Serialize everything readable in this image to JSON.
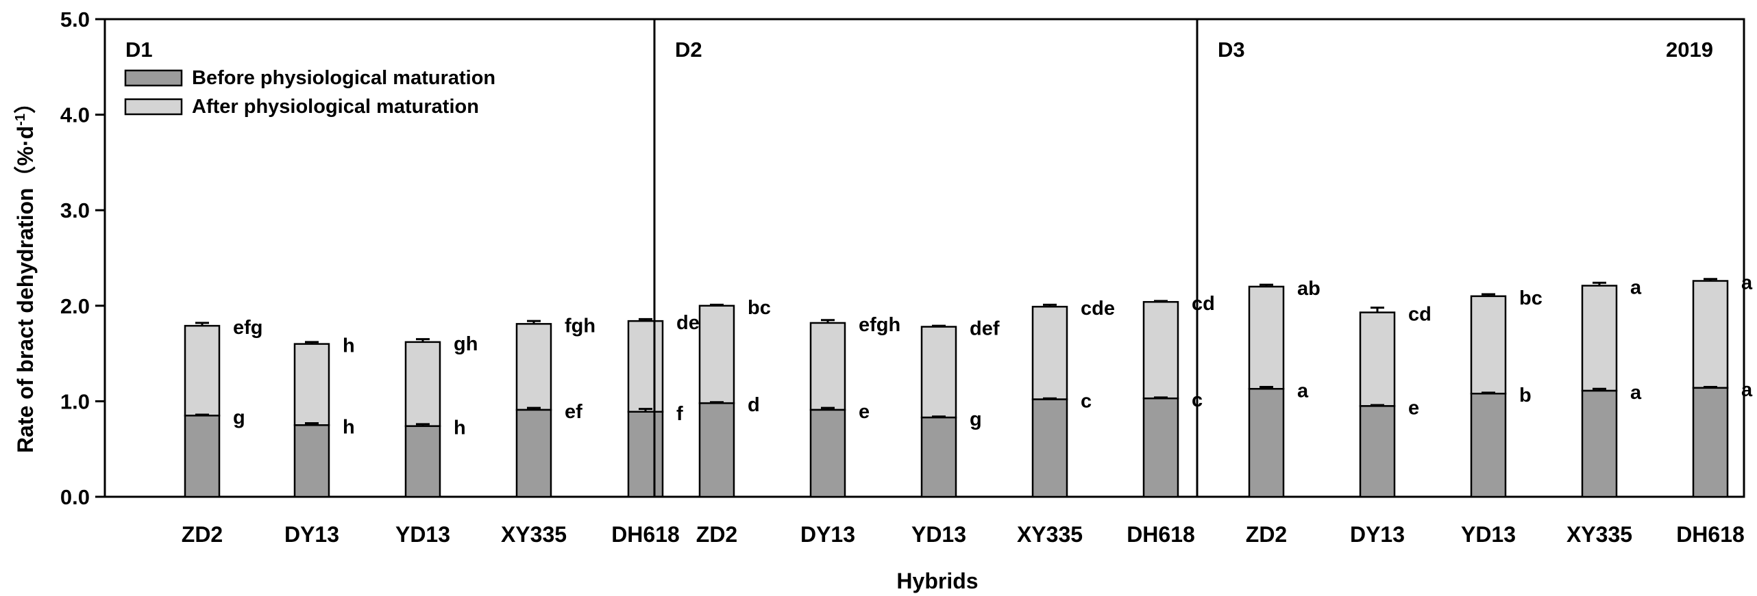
{
  "chart_data": {
    "type": "bar",
    "stacked": true,
    "ylabel": "Rate of bract dehydration（%·d",
    "ylabel_sup": "-1",
    "ylabel_close": "）",
    "xlabel": "Hybrids",
    "year_label": "2019",
    "ylim": [
      0,
      5
    ],
    "yticks": [
      "0.0",
      "1.0",
      "2.0",
      "3.0",
      "4.0",
      "5.0"
    ],
    "ytick_values": [
      0,
      1,
      2,
      3,
      4,
      5
    ],
    "legend": [
      {
        "name": "Before physiological maturation",
        "color": "#9c9c9c"
      },
      {
        "name": "After physiological maturation",
        "color": "#d4d4d4"
      }
    ],
    "categories": [
      "ZD2",
      "DY13",
      "YD13",
      "XY335",
      "DH618"
    ],
    "panels": [
      {
        "label": "D1",
        "before": [
          0.85,
          0.75,
          0.74,
          0.91,
          0.89
        ],
        "before_err": [
          0.01,
          0.02,
          0.02,
          0.02,
          0.03
        ],
        "total": [
          1.79,
          1.6,
          1.62,
          1.81,
          1.84
        ],
        "total_err": [
          0.03,
          0.02,
          0.03,
          0.03,
          0.02
        ],
        "before_sig": [
          "g",
          "h",
          "h",
          "ef",
          "f"
        ],
        "total_sig": [
          "efg",
          "h",
          "gh",
          "fgh",
          "def"
        ]
      },
      {
        "label": "D2",
        "before": [
          0.98,
          0.91,
          0.83,
          1.02,
          1.03
        ],
        "before_err": [
          0.01,
          0.02,
          0.01,
          0.01,
          0.01
        ],
        "total": [
          2.0,
          1.82,
          1.78,
          1.99,
          2.04
        ],
        "total_err": [
          0.01,
          0.03,
          0.01,
          0.02,
          0.01
        ],
        "before_sig": [
          "d",
          "e",
          "g",
          "c",
          "c"
        ],
        "total_sig": [
          "bc",
          "efgh",
          "def",
          "cde",
          "cd"
        ]
      },
      {
        "label": "D3",
        "before": [
          1.13,
          0.95,
          1.08,
          1.11,
          1.14
        ],
        "before_err": [
          0.02,
          0.01,
          0.01,
          0.02,
          0.01
        ],
        "total": [
          2.2,
          1.93,
          2.1,
          2.21,
          2.26
        ],
        "total_err": [
          0.02,
          0.05,
          0.02,
          0.03,
          0.02
        ],
        "before_sig": [
          "a",
          "e",
          "b",
          "a",
          "a"
        ],
        "total_sig": [
          "ab",
          "cd",
          "bc",
          "a",
          "a"
        ]
      }
    ]
  }
}
